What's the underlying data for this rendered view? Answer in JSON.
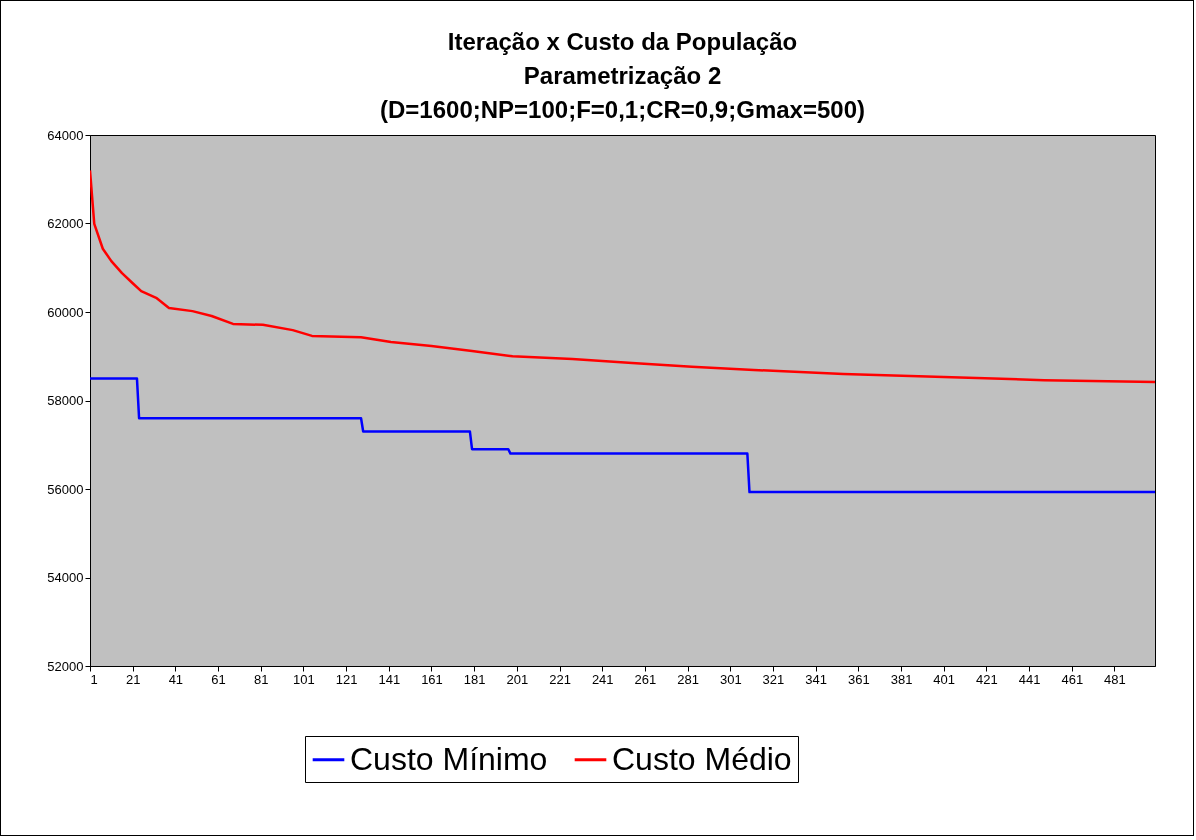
{
  "chart_data": {
    "type": "line",
    "title": "Iteração x Custo da População\nParametrização 2\n(D=1600;NP=100;F=0,1;CR=0,9;Gmax=500)",
    "xlim": [
      1,
      500
    ],
    "xticks": [
      1,
      21,
      41,
      61,
      81,
      101,
      121,
      141,
      161,
      181,
      201,
      221,
      241,
      261,
      281,
      301,
      321,
      341,
      361,
      381,
      401,
      421,
      441,
      461,
      481
    ],
    "ylim": [
      52000,
      64000
    ],
    "yticks": [
      52000,
      54000,
      56000,
      58000,
      60000,
      62000,
      64000
    ],
    "legend": "bottom",
    "series": [
      {
        "name": "Custo Mínimo",
        "color": "#0000ff",
        "x": [
          1,
          23,
          24,
          128,
          129,
          179,
          180,
          197,
          198,
          309,
          310,
          500
        ],
        "values": [
          58500,
          58500,
          57600,
          57600,
          57300,
          57300,
          56900,
          56900,
          56800,
          56800,
          55930,
          55930
        ]
      },
      {
        "name": "Custo Médio",
        "color": "#ff0000",
        "x": [
          1,
          3,
          7,
          11,
          16,
          21,
          25,
          32,
          38,
          49,
          58,
          68,
          82,
          96,
          105,
          128,
          142,
          161,
          180,
          199,
          227,
          255,
          283,
          312,
          354,
          401,
          448,
          500
        ],
        "values": [
          63200,
          61990,
          61430,
          61150,
          60880,
          60650,
          60470,
          60320,
          60090,
          60020,
          59910,
          59730,
          59710,
          59590,
          59460,
          59430,
          59320,
          59230,
          59120,
          59000,
          58940,
          58850,
          58760,
          58690,
          58600,
          58530,
          58460,
          58420
        ]
      }
    ]
  }
}
